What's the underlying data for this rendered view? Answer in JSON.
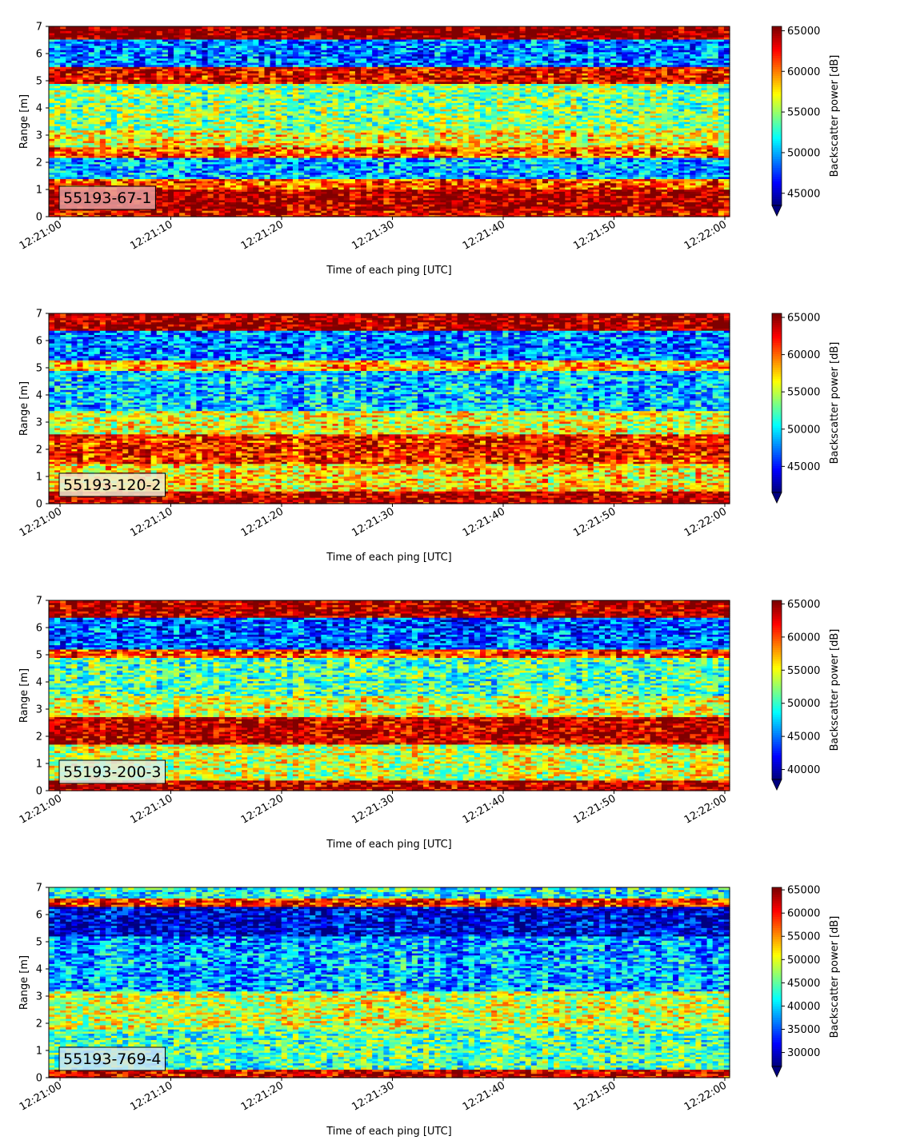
{
  "chart_data": [
    {
      "type": "heatmap",
      "label_box": "55193-67-1",
      "xlabel": "Time of each ping [UTC]",
      "ylabel": "Range [m]",
      "x_tick_labels": [
        "12:21:00",
        "12:21:10",
        "12:21:20",
        "12:21:30",
        "12:21:40",
        "12:21:50",
        "12:22:00"
      ],
      "y_tick_labels": [
        "0",
        "1",
        "2",
        "3",
        "4",
        "5",
        "6",
        "7"
      ],
      "ylim": [
        0,
        7
      ],
      "colorbar_label": "Backscatter power [dB]",
      "colorbar_ticks": [
        45000,
        50000,
        55000,
        60000,
        65000
      ],
      "clim": [
        43500,
        65535
      ],
      "colormap": "jet",
      "label_box_color": "#e8a0a0",
      "profile_bands": [
        {
          "range": [
            0.0,
            0.2
          ],
          "level": 0.9
        },
        {
          "range": [
            0.2,
            1.0
          ],
          "level": 0.97
        },
        {
          "range": [
            1.0,
            1.4
          ],
          "level": 0.8
        },
        {
          "range": [
            1.4,
            2.2
          ],
          "level": 0.3
        },
        {
          "range": [
            2.2,
            2.6
          ],
          "level": 0.78
        },
        {
          "range": [
            2.6,
            3.2
          ],
          "level": 0.62
        },
        {
          "range": [
            3.2,
            4.9
          ],
          "level": 0.5
        },
        {
          "range": [
            4.9,
            5.5
          ],
          "level": 0.9
        },
        {
          "range": [
            5.5,
            6.5
          ],
          "level": 0.25
        },
        {
          "range": [
            6.5,
            7.0
          ],
          "level": 1.0
        }
      ]
    },
    {
      "type": "heatmap",
      "label_box": "55193-120-2",
      "xlabel": "Time of each ping [UTC]",
      "ylabel": "Range [m]",
      "x_tick_labels": [
        "12:21:00",
        "12:21:10",
        "12:21:20",
        "12:21:30",
        "12:21:40",
        "12:21:50",
        "12:22:00"
      ],
      "y_tick_labels": [
        "0",
        "1",
        "2",
        "3",
        "4",
        "5",
        "6",
        "7"
      ],
      "ylim": [
        0,
        7
      ],
      "colorbar_label": "Backscatter power [dB]",
      "colorbar_ticks": [
        45000,
        50000,
        55000,
        60000,
        65000
      ],
      "clim": [
        41500,
        65535
      ],
      "colormap": "jet",
      "label_box_color": "#f2ead0",
      "profile_bands": [
        {
          "range": [
            0.0,
            0.5
          ],
          "level": 0.95
        },
        {
          "range": [
            0.5,
            1.5
          ],
          "level": 0.65
        },
        {
          "range": [
            1.5,
            2.6
          ],
          "level": 0.85
        },
        {
          "range": [
            2.6,
            3.4
          ],
          "level": 0.6
        },
        {
          "range": [
            3.4,
            4.9
          ],
          "level": 0.32
        },
        {
          "range": [
            4.9,
            5.3
          ],
          "level": 0.7
        },
        {
          "range": [
            5.3,
            6.4
          ],
          "level": 0.25
        },
        {
          "range": [
            6.4,
            7.0
          ],
          "level": 0.97
        }
      ]
    },
    {
      "type": "heatmap",
      "label_box": "55193-200-3",
      "xlabel": "Time of each ping [UTC]",
      "ylabel": "Range [m]",
      "x_tick_labels": [
        "12:21:00",
        "12:21:10",
        "12:21:20",
        "12:21:30",
        "12:21:40",
        "12:21:50",
        "12:22:00"
      ],
      "y_tick_labels": [
        "0",
        "1",
        "2",
        "3",
        "4",
        "5",
        "6",
        "7"
      ],
      "ylim": [
        0,
        7
      ],
      "colorbar_label": "Backscatter power [dB]",
      "colorbar_ticks": [
        40000,
        45000,
        50000,
        55000,
        60000,
        65000
      ],
      "clim": [
        38500,
        65535
      ],
      "colormap": "jet",
      "label_box_color": "#dcf0e8",
      "profile_bands": [
        {
          "range": [
            0.0,
            0.4
          ],
          "level": 0.95
        },
        {
          "range": [
            0.4,
            1.7
          ],
          "level": 0.58
        },
        {
          "range": [
            1.7,
            2.7
          ],
          "level": 0.95
        },
        {
          "range": [
            2.7,
            3.5
          ],
          "level": 0.6
        },
        {
          "range": [
            3.5,
            4.9
          ],
          "level": 0.45
        },
        {
          "range": [
            4.9,
            5.2
          ],
          "level": 0.8
        },
        {
          "range": [
            5.2,
            6.4
          ],
          "level": 0.22
        },
        {
          "range": [
            6.4,
            7.0
          ],
          "level": 0.96
        }
      ]
    },
    {
      "type": "heatmap",
      "label_box": "55193-769-4",
      "xlabel": "Time of each ping [UTC]",
      "ylabel": "Range [m]",
      "x_tick_labels": [
        "12:21:00",
        "12:21:10",
        "12:21:20",
        "12:21:30",
        "12:21:40",
        "12:21:50",
        "12:22:00"
      ],
      "y_tick_labels": [
        "0",
        "1",
        "2",
        "3",
        "4",
        "5",
        "6",
        "7"
      ],
      "ylim": [
        0,
        7
      ],
      "colorbar_label": "Backscatter power [dB]",
      "colorbar_ticks": [
        30000,
        35000,
        40000,
        45000,
        50000,
        55000,
        60000,
        65000
      ],
      "clim": [
        27000,
        65535
      ],
      "colormap": "jet",
      "label_box_color": "#cfe4f4",
      "profile_bands": [
        {
          "range": [
            0.0,
            0.3
          ],
          "level": 0.92
        },
        {
          "range": [
            0.3,
            1.8
          ],
          "level": 0.45
        },
        {
          "range": [
            1.8,
            3.2
          ],
          "level": 0.58
        },
        {
          "range": [
            3.2,
            4.6
          ],
          "level": 0.3
        },
        {
          "range": [
            4.6,
            5.2
          ],
          "level": 0.28
        },
        {
          "range": [
            5.2,
            6.3
          ],
          "level": 0.1
        },
        {
          "range": [
            6.3,
            6.6
          ],
          "level": 0.85
        },
        {
          "range": [
            6.6,
            7.0
          ],
          "level": 0.4
        }
      ]
    }
  ]
}
